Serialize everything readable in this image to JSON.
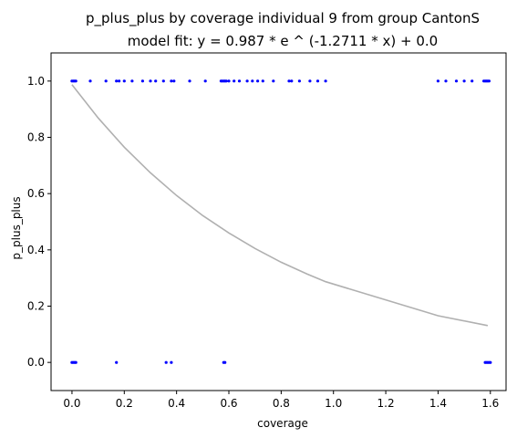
{
  "chart_data": {
    "type": "scatter",
    "title": "p_plus_plus by coverage individual 9 from group CantonS",
    "subtitle": "model fit: y = 0.987 * e ^ (-1.2711 * x) + 0.0",
    "xlabel": "coverage",
    "ylabel": "p_plus_plus",
    "xlim": [
      -0.08,
      1.66
    ],
    "ylim": [
      -0.1,
      1.1
    ],
    "xticks": [
      0.0,
      0.2,
      0.4,
      0.6,
      0.8,
      1.0,
      1.2,
      1.4,
      1.6
    ],
    "xtick_labels": [
      "0.0",
      "0.2",
      "0.4",
      "0.6",
      "0.8",
      "1.0",
      "1.2",
      "1.4",
      "1.6"
    ],
    "yticks": [
      0.0,
      0.2,
      0.4,
      0.6,
      0.8,
      1.0
    ],
    "ytick_labels": [
      "0.0",
      "0.2",
      "0.4",
      "0.6",
      "0.8",
      "1.0"
    ],
    "grid": false,
    "point_color": "#0000ff",
    "fit_color": "#b0b0b0",
    "series": [
      {
        "type": "scatter",
        "x": [
          0.0,
          0.005,
          0.01,
          0.015,
          0.07,
          0.13,
          0.17,
          0.18,
          0.2,
          0.23,
          0.27,
          0.3,
          0.32,
          0.35,
          0.38,
          0.39,
          0.45,
          0.51,
          0.57,
          0.575,
          0.58,
          0.585,
          0.59,
          0.6,
          0.62,
          0.64,
          0.67,
          0.69,
          0.71,
          0.73,
          0.77,
          0.83,
          0.84,
          0.87,
          0.91,
          0.94,
          0.97,
          1.4,
          1.43,
          1.47,
          1.5,
          1.53,
          1.575,
          1.58,
          1.585,
          1.59,
          1.595,
          0.0,
          0.005,
          0.01,
          0.015,
          0.17,
          0.36,
          0.38,
          0.58,
          0.585,
          1.58,
          1.585,
          1.59,
          1.595,
          1.6
        ],
        "y": [
          1,
          1,
          1,
          1,
          1,
          1,
          1,
          1,
          1,
          1,
          1,
          1,
          1,
          1,
          1,
          1,
          1,
          1,
          1,
          1,
          1,
          1,
          1,
          1,
          1,
          1,
          1,
          1,
          1,
          1,
          1,
          1,
          1,
          1,
          1,
          1,
          1,
          1,
          1,
          1,
          1,
          1,
          1,
          1,
          1,
          1,
          1,
          0,
          0,
          0,
          0,
          0,
          0,
          0,
          0,
          0,
          0,
          0,
          0,
          0,
          0
        ]
      },
      {
        "type": "line",
        "x": [
          0.0,
          0.1,
          0.2,
          0.3,
          0.4,
          0.5,
          0.6,
          0.7,
          0.8,
          0.9,
          0.97,
          1.4,
          1.59
        ],
        "y": [
          0.987,
          0.869,
          0.765,
          0.674,
          0.593,
          0.522,
          0.46,
          0.405,
          0.356,
          0.314,
          0.287,
          0.166,
          0.131
        ]
      }
    ]
  }
}
